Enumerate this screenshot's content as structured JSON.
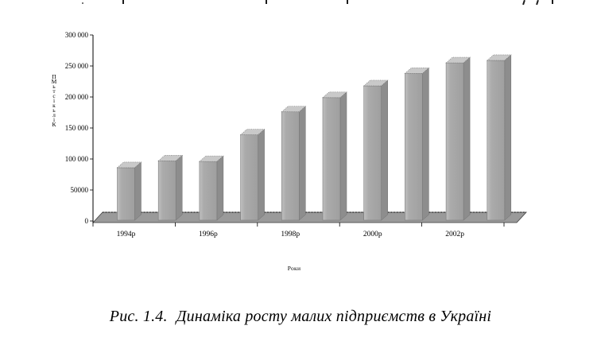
{
  "chart_data": {
    "type": "bar",
    "projection": "3d",
    "title": "",
    "categories": [
      "1994",
      "1995",
      "1996",
      "1997",
      "1998",
      "1999",
      "2000",
      "2001",
      "2002",
      "2003"
    ],
    "values": [
      86000,
      97000,
      96000,
      139000,
      176000,
      199000,
      218000,
      238000,
      255000,
      259000
    ],
    "ylim": [
      0,
      300000
    ],
    "ytick_step": 50000,
    "ytick_labels": [
      "0",
      "50000",
      "100 000",
      "150 000",
      "200 000",
      "250 000",
      "300 000"
    ],
    "x_tick_labels": [
      "1994р",
      "1996р",
      "1998р",
      "2000р",
      "2002р"
    ],
    "x_tick_label_every": 2,
    "xlabel": "Роки",
    "ylabel": "Кількість МП",
    "legend": false,
    "grid": false,
    "colors": {
      "bar_front": "#ababab",
      "bar_front_light": "#bfbfbf",
      "bar_side": "#8d8d8d",
      "bar_top": "#c9c9c9",
      "floor": "#9a9a9a",
      "axis": "#000000",
      "background": "#ffffff"
    }
  },
  "caption": {
    "label": "Рис. 1.4.",
    "title": "Динаміка росту малих підприємств в Україні"
  }
}
